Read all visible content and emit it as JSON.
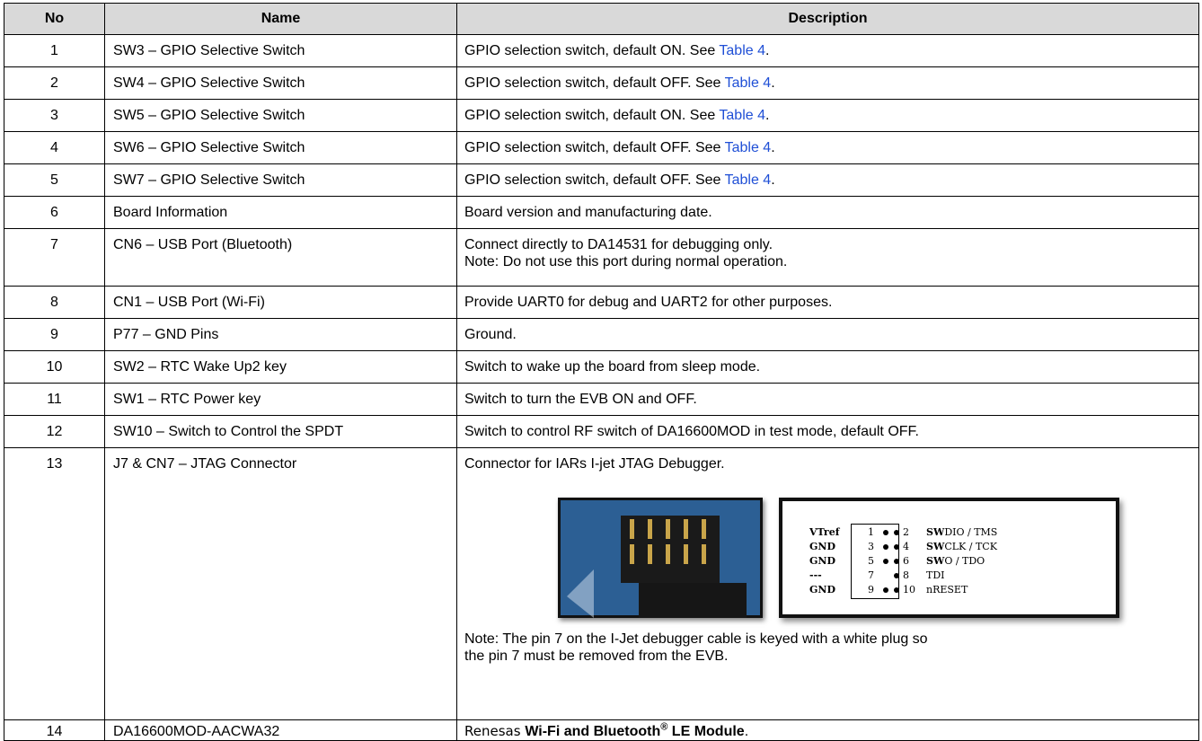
{
  "table": {
    "headers": [
      "No",
      "Name",
      "Description"
    ],
    "rows": [
      {
        "no": "1",
        "name": "SW3 – GPIO Selective Switch",
        "description": [
          [
            {
              "text": "GPIO selection switch, default ON. See "
            },
            {
              "text": "Table 4",
              "style": "link"
            },
            {
              "text": "."
            }
          ]
        ]
      },
      {
        "no": "2",
        "name": "SW4 – GPIO Selective Switch",
        "description": [
          [
            {
              "text": "GPIO selection switch, default OFF. See "
            },
            {
              "text": "Table 4",
              "style": "link"
            },
            {
              "text": "."
            }
          ]
        ]
      },
      {
        "no": "3",
        "name": "SW5 – GPIO Selective Switch",
        "description": [
          [
            {
              "text": "GPIO selection switch, default ON. See "
            },
            {
              "text": "Table 4",
              "style": "link"
            },
            {
              "text": "."
            }
          ]
        ]
      },
      {
        "no": "4",
        "name": "SW6 – GPIO Selective Switch",
        "description": [
          [
            {
              "text": "GPIO selection switch, default OFF. See "
            },
            {
              "text": "Table 4",
              "style": "link"
            },
            {
              "text": "."
            }
          ]
        ]
      },
      {
        "no": "5",
        "name": "SW7 – GPIO Selective Switch",
        "description": [
          [
            {
              "text": "GPIO selection switch, default OFF. See "
            },
            {
              "text": "Table 4",
              "style": "link"
            },
            {
              "text": "."
            }
          ]
        ]
      },
      {
        "no": "6",
        "name": "Board Information",
        "description": [
          [
            {
              "text": "Board version and manufacturing date."
            }
          ]
        ]
      },
      {
        "no": "7",
        "name": "CN6 – USB Port (Bluetooth)",
        "description": [
          [
            {
              "text": "Connect directly to DA14531 for debugging only."
            }
          ],
          [
            {
              "text": "Note: Do not use this port during normal operation."
            }
          ]
        ]
      },
      {
        "no": "8",
        "name": "CN1 – USB Port (Wi-Fi)",
        "description": [
          [
            {
              "text": "Provide UART0 for debug and UART2 for other purposes."
            }
          ]
        ]
      },
      {
        "no": "9",
        "name": "P77 – GND Pins",
        "description": [
          [
            {
              "text": "Ground."
            }
          ]
        ]
      },
      {
        "no": "10",
        "name": "SW2 – RTC Wake Up2 key",
        "description": [
          [
            {
              "text": "Switch to wake up the board from sleep mode."
            }
          ]
        ]
      },
      {
        "no": "11",
        "name": "SW1 – RTC Power key",
        "description": [
          [
            {
              "text": "Switch to turn the EVB ON and OFF."
            }
          ]
        ]
      },
      {
        "no": "12",
        "name": "SW10 – Switch to Control the SPDT",
        "description": [
          [
            {
              "text": "Switch to control RF switch of DA16600MOD in test mode, default OFF."
            }
          ]
        ]
      },
      {
        "no": "13",
        "name": "J7 & CN7 – JTAG Connector",
        "description": [
          [
            {
              "text": "Connector for IARs I-jet JTAG Debugger."
            }
          ]
        ],
        "figure": {
          "pinout": [
            {
              "left": "VTref",
              "pins": [
                "1",
                "2"
              ],
              "dots": 2,
              "signal": {
                "bold": "SW",
                "text": "DIO / TMS"
              }
            },
            {
              "left": "GND",
              "pins": [
                "3",
                "4"
              ],
              "dots": 2,
              "signal": {
                "bold": "SW",
                "text": "CLK / TCK"
              }
            },
            {
              "left": "GND",
              "pins": [
                "5",
                "6"
              ],
              "dots": 2,
              "signal": {
                "bold": "SW",
                "text": "O / TDO"
              }
            },
            {
              "left": "---",
              "pins": [
                "7",
                "8"
              ],
              "dots": 1,
              "signal": {
                "text": "TDI"
              }
            },
            {
              "left": "GND",
              "pins": [
                "9",
                "10"
              ],
              "dots": 2,
              "signal": {
                "text": "nRESET"
              }
            }
          ]
        },
        "note": [
          [
            {
              "text": "Note: The pin 7 on the I-Jet debugger cable is keyed with a white plug so"
            }
          ],
          [
            {
              "text": "the pin 7 must be removed from the EVB."
            }
          ]
        ]
      },
      {
        "no": "14",
        "name": "DA16600MOD-AACWA32",
        "description": [
          [
            {
              "text": "Renesas ",
              "style": "brand"
            },
            {
              "text": "Wi-Fi and Bluetooth",
              "style": "bold"
            },
            {
              "text": "®",
              "style": "sup"
            },
            {
              "text": " LE Module",
              "style": "bold"
            },
            {
              "text": "."
            }
          ]
        ]
      }
    ]
  }
}
